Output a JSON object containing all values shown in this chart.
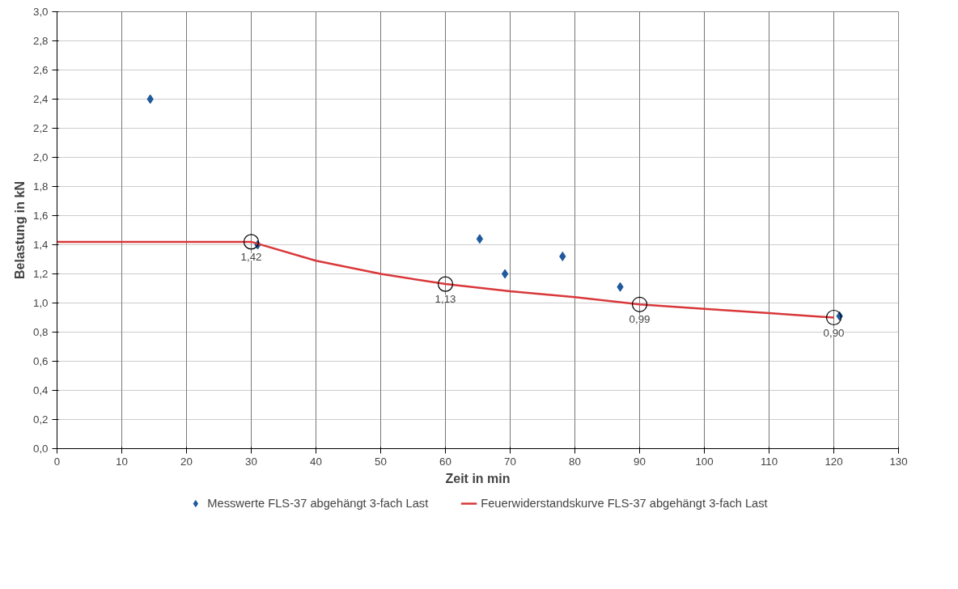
{
  "chart_data": {
    "type": "scatter",
    "xlabel": "Zeit in min",
    "ylabel": "Belastung in kN",
    "xlim": [
      0,
      130
    ],
    "ylim": [
      0,
      3.0
    ],
    "xticks": [
      0,
      10,
      20,
      30,
      40,
      50,
      60,
      70,
      80,
      90,
      100,
      110,
      120,
      130
    ],
    "yticks": [
      {
        "value": 0,
        "label": "0,0"
      },
      {
        "value": 0.2,
        "label": "0,2"
      },
      {
        "value": 0.4,
        "label": "0,4"
      },
      {
        "value": 0.6,
        "label": "0,6"
      },
      {
        "value": 0.8,
        "label": "0,8"
      },
      {
        "value": 1.0,
        "label": "1,0"
      },
      {
        "value": 1.2,
        "label": "1,2"
      },
      {
        "value": 1.4,
        "label": "1,4"
      },
      {
        "value": 1.6,
        "label": "1,6"
      },
      {
        "value": 1.8,
        "label": "1,8"
      },
      {
        "value": 2.0,
        "label": "2,0"
      },
      {
        "value": 2.2,
        "label": "2,2"
      },
      {
        "value": 2.4,
        "label": "2,4"
      },
      {
        "value": 2.6,
        "label": "2,6"
      },
      {
        "value": 2.8,
        "label": "2,8"
      },
      {
        "value": 3.0,
        "label": "3,0"
      }
    ],
    "grid": true,
    "legend": "bottom",
    "series": [
      {
        "name": "Messwerte FLS-37 abgehängt 3-fach Last",
        "marker": "diamond",
        "color": "#1f5a9c",
        "x": [
          14.4,
          31.0,
          65.3,
          69.2,
          78.1,
          87.0,
          120.9
        ],
        "values": [
          2.4,
          1.4,
          1.44,
          1.2,
          1.32,
          1.11,
          0.91
        ]
      },
      {
        "name": "Feuerwiderstandskurve FLS-37 abgehängt 3-fach Last",
        "type": "line",
        "marker": "none",
        "color": "#d9383a",
        "x": [
          0,
          30,
          40,
          50,
          60,
          70,
          80,
          90,
          100,
          110,
          120
        ],
        "values": [
          1.42,
          1.42,
          1.29,
          1.2,
          1.13,
          1.08,
          1.04,
          0.99,
          0.96,
          0.93,
          0.9
        ]
      }
    ],
    "annotations": [
      {
        "text": "1,42",
        "x": 30,
        "y": 1.42
      },
      {
        "text": "1,13",
        "x": 60,
        "y": 1.13
      },
      {
        "text": "0,99",
        "x": 90,
        "y": 0.99
      },
      {
        "text": "0,90",
        "x": 120,
        "y": 0.9
      }
    ]
  }
}
